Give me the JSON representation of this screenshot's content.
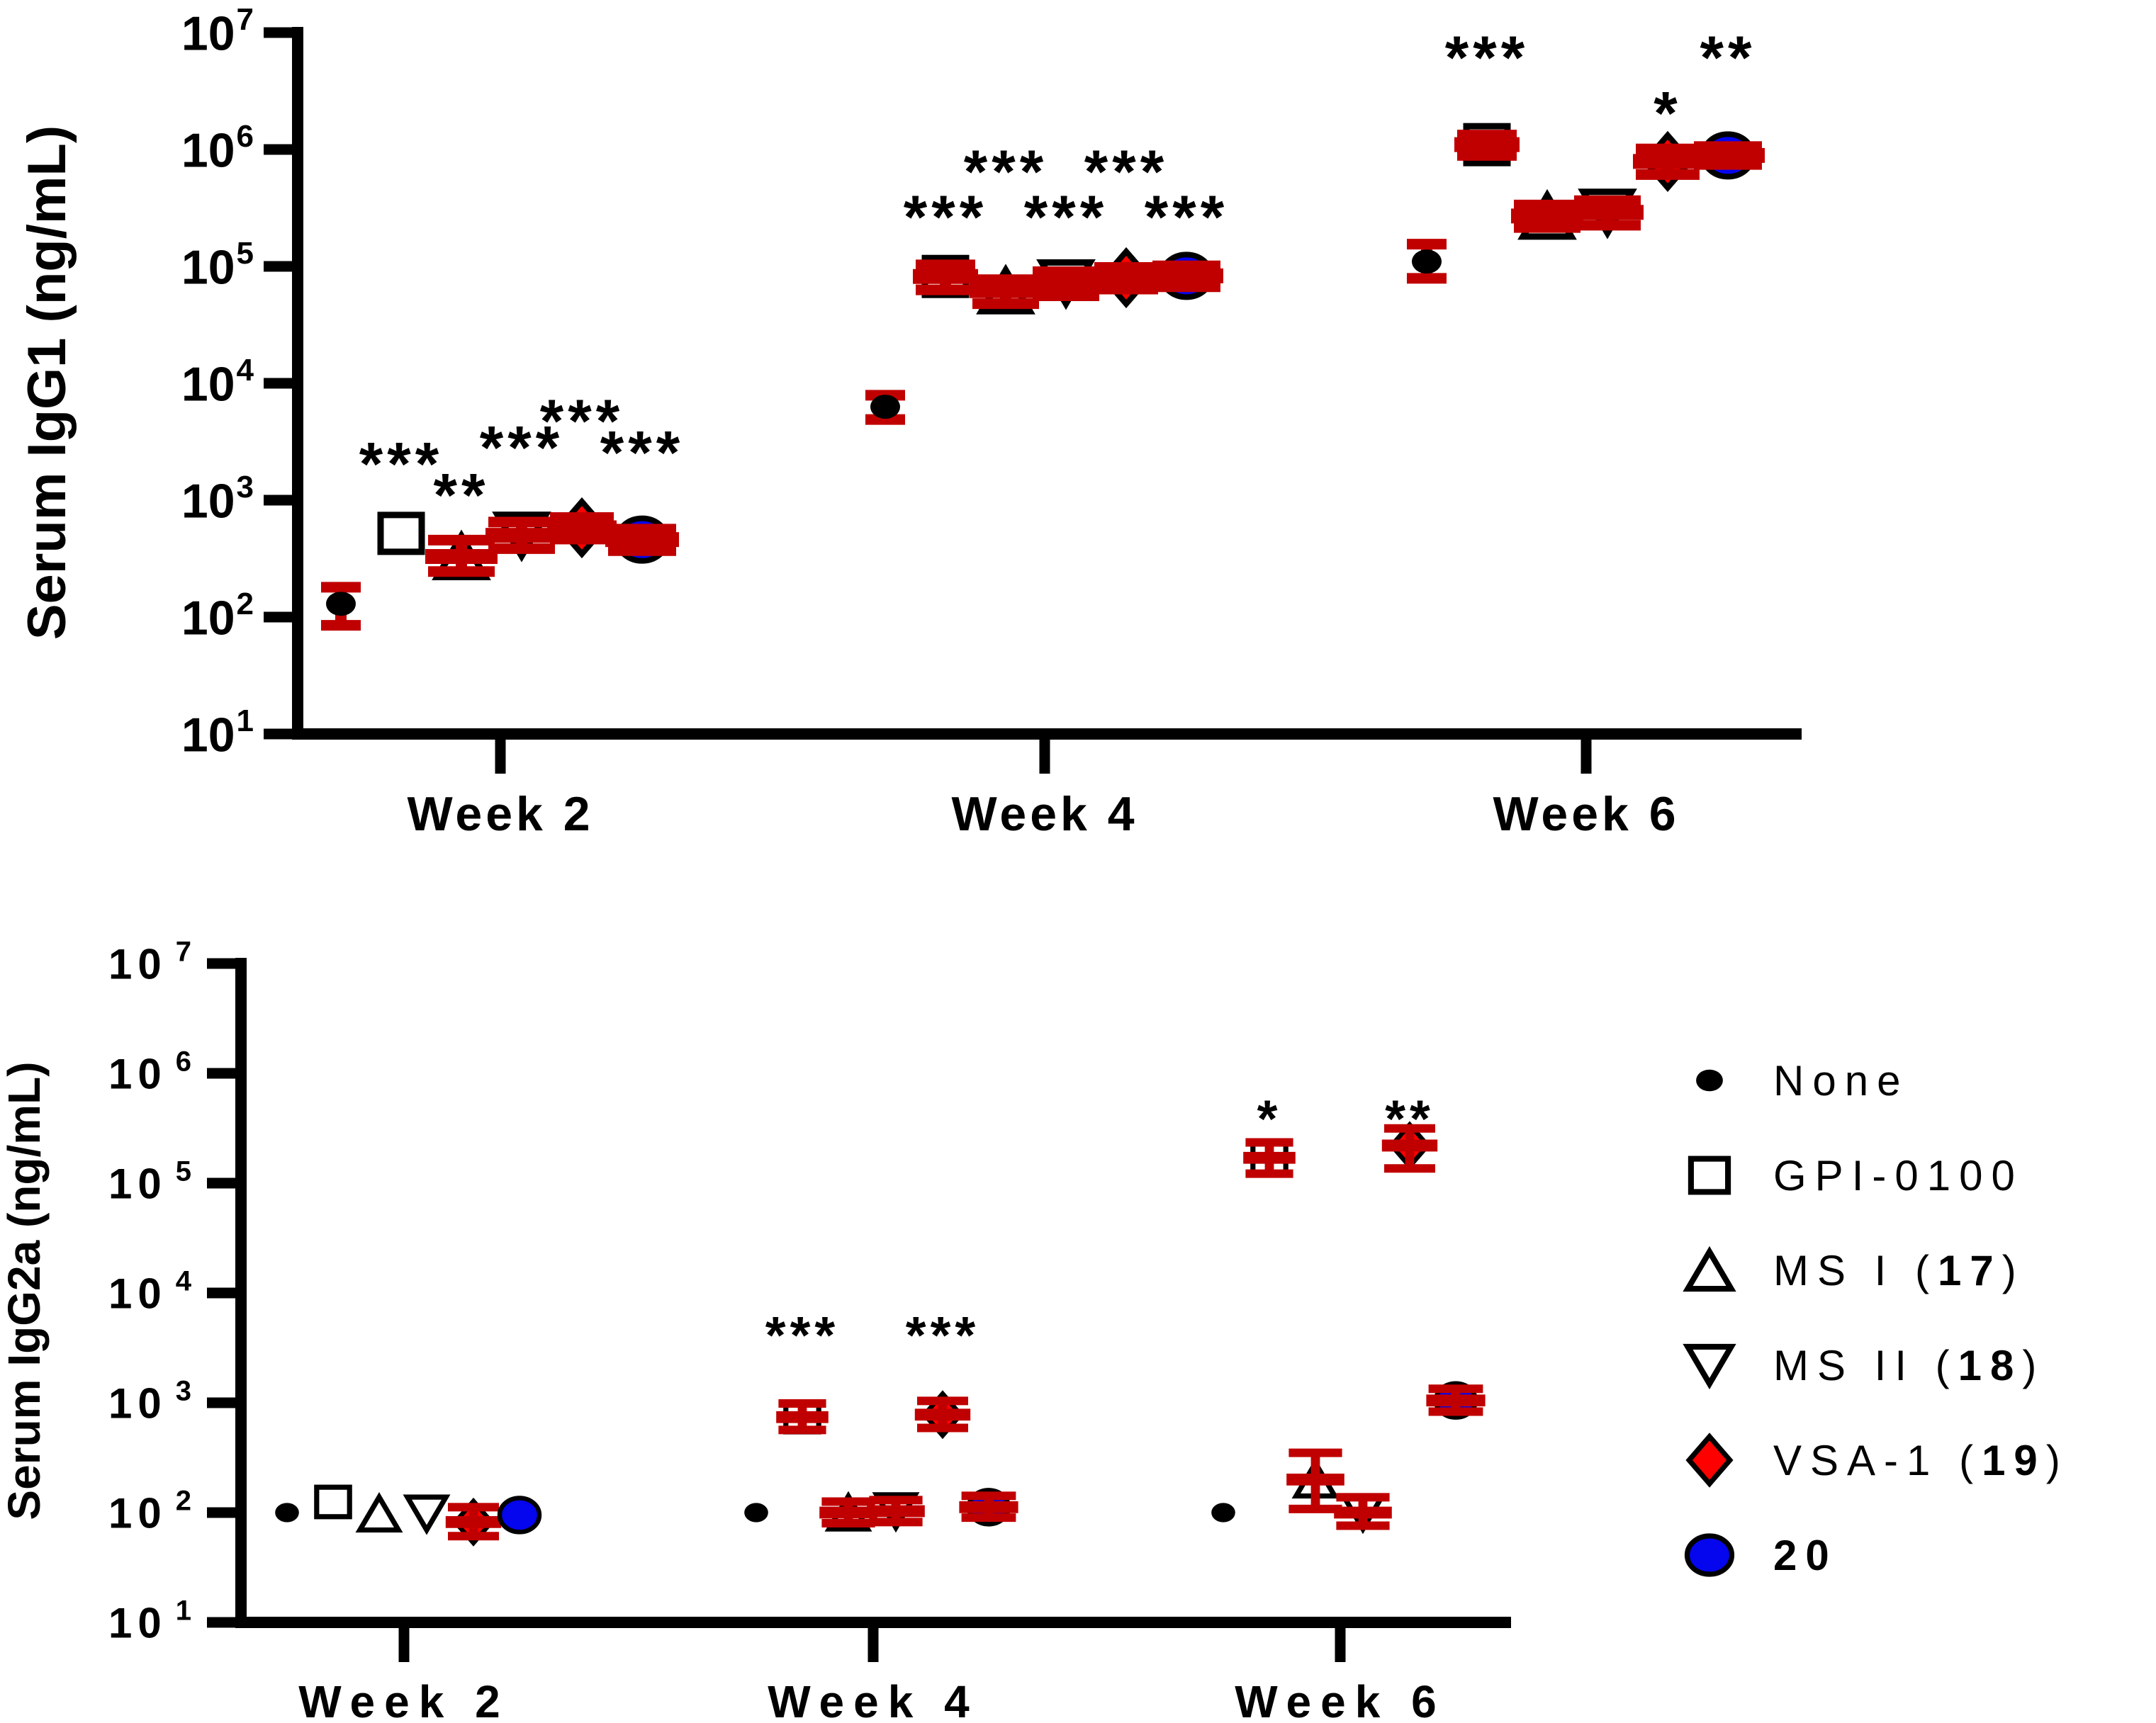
{
  "colors": {
    "error_bar": "#C00000",
    "diamond_red": "#FF0000",
    "circle_blue": "#0505EE",
    "black": "#000000",
    "background": "#FFFFFF"
  },
  "chart_data": [
    {
      "id": "igg1",
      "type": "scatter",
      "title": "",
      "ylabel": "Serum IgG1 (ng/mL)",
      "yscale": "log",
      "ylim": [
        10,
        10000000
      ],
      "ytick_base": "10",
      "ytick_exponents": [
        7,
        6,
        5,
        4,
        3,
        2,
        1
      ],
      "grid": false,
      "categories": [
        "Week 2",
        "Week 4",
        "Week 6"
      ],
      "series": [
        {
          "key": "none",
          "name": "None",
          "marker": "filled-circle",
          "color": "#000000"
        },
        {
          "key": "gpi",
          "name": "GPI-0100",
          "marker": "open-square",
          "color": "#FFFFFF"
        },
        {
          "key": "ms1",
          "name": "MS I (17)",
          "marker": "open-triangle-up",
          "color": "#FFFFFF"
        },
        {
          "key": "ms2",
          "name": "MS II (18)",
          "marker": "open-triangle-down",
          "color": "#FFFFFF"
        },
        {
          "key": "vsa",
          "name": "VSA-1 (19)",
          "marker": "filled-diamond",
          "color": "#FF0000"
        },
        {
          "key": "c20",
          "name": "20",
          "marker": "filled-ellipse",
          "color": "#0505EE"
        }
      ],
      "points": [
        {
          "week": "Week 2",
          "series": "none",
          "value": 130,
          "err": [
            85,
            180
          ],
          "sig": ""
        },
        {
          "week": "Week 2",
          "series": "gpi",
          "value": 520,
          "err": null,
          "sig": "***",
          "sig_value": 2400
        },
        {
          "week": "Week 2",
          "series": "ms1",
          "value": 330,
          "err": [
            245,
            455
          ],
          "sig": "**",
          "sig_value": 1300
        },
        {
          "week": "Week 2",
          "series": "ms2",
          "value": 500,
          "err": [
            385,
            650
          ],
          "sig": "***",
          "sig_value": 3300
        },
        {
          "week": "Week 2",
          "series": "vsa",
          "value": 580,
          "err": [
            465,
            710
          ],
          "sig": "***",
          "sig_value": 5600
        },
        {
          "week": "Week 2",
          "series": "c20",
          "value": 460,
          "err": [
            370,
            565
          ],
          "sig": "***",
          "sig_value": 3000
        },
        {
          "week": "Week 4",
          "series": "none",
          "value": 6300,
          "err": [
            4900,
            7900
          ],
          "sig": ""
        },
        {
          "week": "Week 4",
          "series": "gpi",
          "value": 82000,
          "err": [
            63000,
            103000
          ],
          "sig": "***",
          "sig_value": 310000
        },
        {
          "week": "Week 4",
          "series": "ms1",
          "value": 62000,
          "err": [
            48000,
            77000
          ],
          "sig": "***",
          "sig_value": 760000
        },
        {
          "week": "Week 4",
          "series": "ms2",
          "value": 72000,
          "err": [
            56000,
            90000
          ],
          "sig": "***",
          "sig_value": 310000
        },
        {
          "week": "Week 4",
          "series": "vsa",
          "value": 80000,
          "err": [
            64000,
            98000
          ],
          "sig": "***",
          "sig_value": 760000
        },
        {
          "week": "Week 4",
          "series": "c20",
          "value": 83000,
          "err": [
            67000,
            101000
          ],
          "sig": "***",
          "sig_value": 310000
        },
        {
          "week": "Week 6",
          "series": "none",
          "value": 110000,
          "err": [
            79000,
            155000
          ],
          "sig": ""
        },
        {
          "week": "Week 6",
          "series": "gpi",
          "value": 1100000,
          "err": [
            890000,
            1330000
          ],
          "sig": "***",
          "sig_value": 7200000
        },
        {
          "week": "Week 6",
          "series": "ms1",
          "value": 270000,
          "err": [
            215000,
            335000
          ],
          "sig": ""
        },
        {
          "week": "Week 6",
          "series": "ms2",
          "value": 290000,
          "err": [
            225000,
            365000
          ],
          "sig": ""
        },
        {
          "week": "Week 6",
          "series": "vsa",
          "value": 790000,
          "err": [
            610000,
            1010000
          ],
          "sig": "*",
          "sig_value": 2400000
        },
        {
          "week": "Week 6",
          "series": "c20",
          "value": 890000,
          "err": [
            745000,
            1060000
          ],
          "sig": "**",
          "sig_value": 7200000
        }
      ]
    },
    {
      "id": "igg2a",
      "type": "scatter",
      "title": "",
      "ylabel": "Serum IgG2a (ng/mL)",
      "yscale": "log",
      "ylim": [
        10,
        10000000
      ],
      "ytick_base": "10",
      "ytick_exponents": [
        7,
        6,
        5,
        4,
        3,
        2,
        1
      ],
      "grid": false,
      "categories": [
        "Week 2",
        "Week 4",
        "Week 6"
      ],
      "series": [
        {
          "key": "none",
          "name": "None",
          "marker": "filled-circle",
          "color": "#000000"
        },
        {
          "key": "gpi",
          "name": "GPI-0100",
          "marker": "open-square",
          "color": "#FFFFFF"
        },
        {
          "key": "ms1",
          "name": "MS I (17)",
          "marker": "open-triangle-up",
          "color": "#FFFFFF"
        },
        {
          "key": "ms2",
          "name": "MS II (18)",
          "marker": "open-triangle-down",
          "color": "#FFFFFF"
        },
        {
          "key": "vsa",
          "name": "VSA-1 (19)",
          "marker": "filled-diamond",
          "color": "#FF0000"
        },
        {
          "key": "c20",
          "name": "20",
          "marker": "filled-ellipse",
          "color": "#0505EE"
        }
      ],
      "points": [
        {
          "week": "Week 2",
          "series": "none",
          "value": 100,
          "err": null,
          "sig": ""
        },
        {
          "week": "Week 2",
          "series": "gpi",
          "value": 125,
          "err": null,
          "sig": ""
        },
        {
          "week": "Week 2",
          "series": "ms1",
          "value": 98,
          "err": null,
          "sig": ""
        },
        {
          "week": "Week 2",
          "series": "ms2",
          "value": 98,
          "err": null,
          "sig": ""
        },
        {
          "week": "Week 2",
          "series": "vsa",
          "value": 82,
          "err": [
            61,
            112
          ],
          "sig": ""
        },
        {
          "week": "Week 2",
          "series": "c20",
          "value": 95,
          "err": null,
          "sig": ""
        },
        {
          "week": "Week 4",
          "series": "none",
          "value": 100,
          "err": null,
          "sig": ""
        },
        {
          "week": "Week 4",
          "series": "gpi",
          "value": 740,
          "err": [
            565,
            985
          ],
          "sig": "***",
          "sig_value": 4800
        },
        {
          "week": "Week 4",
          "series": "ms1",
          "value": 100,
          "err": [
            80,
            126
          ],
          "sig": ""
        },
        {
          "week": "Week 4",
          "series": "ms2",
          "value": 103,
          "err": [
            82,
            130
          ],
          "sig": ""
        },
        {
          "week": "Week 4",
          "series": "vsa",
          "value": 780,
          "err": [
            590,
            1040
          ],
          "sig": "***",
          "sig_value": 4800
        },
        {
          "week": "Week 4",
          "series": "c20",
          "value": 112,
          "err": [
            90,
            142
          ],
          "sig": ""
        },
        {
          "week": "Week 6",
          "series": "none",
          "value": 100,
          "err": null,
          "sig": ""
        },
        {
          "week": "Week 6",
          "series": "gpi",
          "value": 170000,
          "err": [
            122000,
            235000
          ],
          "sig": "*",
          "sig_value": 450000
        },
        {
          "week": "Week 6",
          "series": "ms1",
          "value": 200,
          "err": [
            108,
            350
          ],
          "sig": ""
        },
        {
          "week": "Week 6",
          "series": "ms2",
          "value": 100,
          "err": [
            76,
            138
          ],
          "sig": ""
        },
        {
          "week": "Week 6",
          "series": "vsa",
          "value": 220000,
          "err": [
            136000,
            315000
          ],
          "sig": "**",
          "sig_value": 450000
        },
        {
          "week": "Week 6",
          "series": "c20",
          "value": 1050,
          "err": [
            830,
            1340
          ],
          "sig": ""
        }
      ]
    }
  ],
  "legend": {
    "position": "right-bottom",
    "items": [
      {
        "pre": "None"
      },
      {
        "pre": "GPI-0100"
      },
      {
        "pre": "MS I (",
        "bold": "17",
        "post": ")"
      },
      {
        "pre": "MS II (",
        "bold": "18",
        "post": ")"
      },
      {
        "pre": "VSA-1 (",
        "bold": "19",
        "post": ")"
      },
      {
        "bold": "20"
      }
    ]
  }
}
